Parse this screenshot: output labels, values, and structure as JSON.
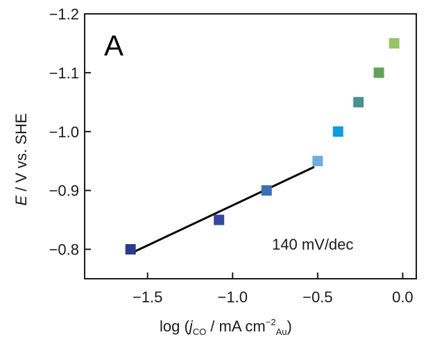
{
  "panel_label": "A",
  "chart_data": {
    "type": "scatter",
    "xlabel": {
      "prefix": "log (",
      "j": "j",
      "co": "CO",
      "middle": " / mA cm",
      "exp": "−2",
      "au": "Au",
      "suffix": ")"
    },
    "ylabel": {
      "E": "E",
      "rest": " / V vs. SHE"
    },
    "xlim": [
      -1.87,
      0.08
    ],
    "ylim": [
      -0.75,
      -1.2
    ],
    "x_ticks": [
      -1.5,
      -1.0,
      -0.5,
      0.0
    ],
    "x_tick_labels": [
      "−1.5",
      "−1.0",
      "−0.5",
      "0.0"
    ],
    "y_ticks": [
      -0.8,
      -0.9,
      -1.0,
      -1.1,
      -1.2
    ],
    "y_tick_labels": [
      "−0.8",
      "−0.9",
      "−1.0",
      "−1.1",
      "−1.2"
    ],
    "points": [
      {
        "x": -1.6,
        "y": -0.8,
        "color": "#2b3a8c"
      },
      {
        "x": -1.08,
        "y": -0.85,
        "color": "#34499e"
      },
      {
        "x": -0.8,
        "y": -0.9,
        "color": "#3d6fb3"
      },
      {
        "x": -0.5,
        "y": -0.95,
        "color": "#6aaee0"
      },
      {
        "x": -0.38,
        "y": -1.0,
        "color": "#0e9be0"
      },
      {
        "x": -0.26,
        "y": -1.05,
        "color": "#4a9090"
      },
      {
        "x": -0.14,
        "y": -1.1,
        "color": "#5fa35a"
      },
      {
        "x": -0.05,
        "y": -1.15,
        "color": "#9cc266"
      }
    ],
    "fit_line": {
      "x": [
        -1.6,
        -0.52
      ],
      "y": [
        -0.793,
        -0.94
      ],
      "color": "#000000"
    },
    "annotation": "140 mV/dec",
    "grid": false
  }
}
